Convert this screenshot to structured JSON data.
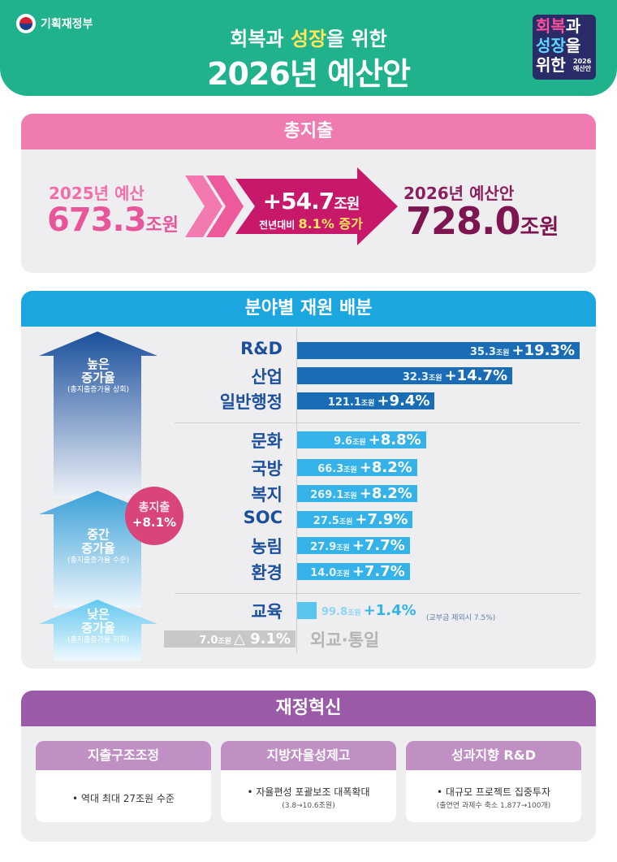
{
  "header": {
    "ministry": "기획재정부",
    "subtitle_pre": "회복과 ",
    "subtitle_highlight": "성장",
    "subtitle_post": "을 위한",
    "title": "2026년 예산안",
    "badge": {
      "a1": "회복",
      "a2": "과",
      "b1": "성장",
      "b2": "을",
      "c1": "위한",
      "c2": "2026",
      "c3": "예산안"
    }
  },
  "total": {
    "heading": "총지출",
    "prev_year_label": "2025년 예산",
    "prev_value": "673.3",
    "unit": "조원",
    "increase_value": "+54.7",
    "increase_note_pre": "전년대비 ",
    "increase_note_val": "8.1% 증가",
    "next_year_label": "2026년 예산안",
    "next_value": "728.0",
    "colors": {
      "pink": "#ec4f96",
      "magenta": "#c8186a",
      "dark": "#7d1650"
    }
  },
  "allocation": {
    "heading": "분야별 재원 배분",
    "high": {
      "title1": "높은",
      "title2": "증가율",
      "note": "(총지출증가율 상회)"
    },
    "mid": {
      "title1": "중간",
      "title2": "증가율",
      "note": "(총지출증가율 수준)"
    },
    "low": {
      "title1": "낮은",
      "title2": "증가율",
      "note": "(총지출증가율 하회)"
    },
    "total_circle": {
      "label": "총지출",
      "value": "+8.1%"
    },
    "edu_note": "(교부금 제외시 7.5%)"
  },
  "chart_data": {
    "type": "bar",
    "orientation": "horizontal",
    "unit": "조원",
    "categories": [
      "R&D",
      "산업",
      "일반행정",
      "문화",
      "국방",
      "복지",
      "SOC",
      "농림",
      "환경",
      "교육",
      "외교·통일"
    ],
    "amounts": [
      35.3,
      32.3,
      121.1,
      9.6,
      66.3,
      269.1,
      27.5,
      27.9,
      14.0,
      99.8,
      7.0
    ],
    "amount_labels": [
      "35.3",
      "32.3",
      "121.1",
      "9.6",
      "66.3",
      "269.1",
      "27.5",
      "27.9",
      "14.0",
      "99.8",
      "7.0"
    ],
    "growth_rate": [
      19.3,
      14.7,
      9.4,
      8.8,
      8.2,
      8.2,
      7.9,
      7.7,
      7.7,
      1.4,
      -9.1
    ],
    "growth_labels": [
      "+19.3%",
      "+14.7%",
      "+9.4%",
      "+8.8%",
      "+8.2%",
      "+8.2%",
      "+7.9%",
      "+7.7%",
      "+7.7%",
      "+1.4%",
      "△ 9.1%"
    ],
    "groups": [
      "high",
      "high",
      "high",
      "mid",
      "mid",
      "mid",
      "mid",
      "mid",
      "mid",
      "low",
      "low"
    ],
    "colors": {
      "high": "#1a6db5",
      "mid": "#35b3e8",
      "low": "#59c6f0",
      "negative": "#c8c8c8"
    }
  },
  "innovation": {
    "heading": "재정혁신",
    "cards": [
      {
        "title": "지출구조조정",
        "line1": "• 역대 최대 27조원 수준",
        "line2": ""
      },
      {
        "title": "지방자율성제고",
        "line1": "• 자율편성 포괄보조 대폭확대",
        "line2": "(3.8→10.6조원)"
      },
      {
        "title": "성과지향 R&D",
        "line1": "• 대규모 프로젝트 집중투자",
        "line2": "(출연연 과제수 축소 1,877→100개)"
      }
    ]
  }
}
